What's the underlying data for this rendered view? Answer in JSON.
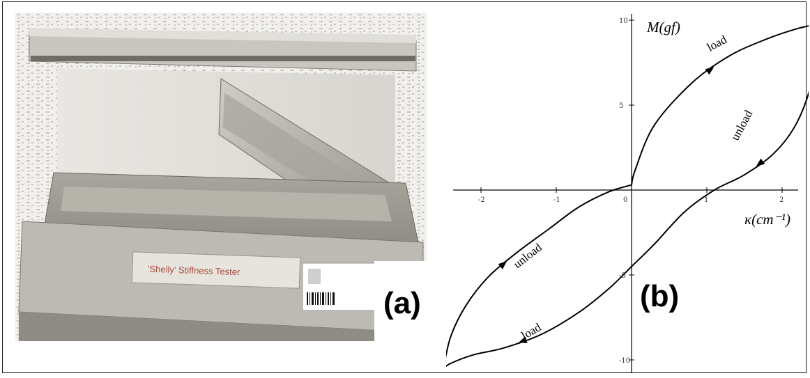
{
  "figure": {
    "panel_a": {
      "label": "(a)",
      "photo_description_label": "'Shelly' Stiffness Tester",
      "background": "#f3f2ee",
      "metal_color": "#b9b6ad"
    },
    "panel_b": {
      "label": "(b)",
      "y_axis_title": "M(gf)",
      "x_axis_title": "κ(cm⁻¹)",
      "annotations": [
        "load",
        "unload",
        "unload",
        "load"
      ]
    }
  },
  "chart_data": {
    "type": "line",
    "title": "",
    "xlabel": "κ(cm⁻¹)",
    "ylabel": "M(gf)",
    "xlim": [
      -2.5,
      2.5
    ],
    "ylim": [
      -10,
      10
    ],
    "x_ticks": [
      "-2",
      "-1",
      "0",
      "1",
      "2"
    ],
    "y_ticks": [
      "10",
      "5",
      "-5",
      "-10"
    ],
    "series": [
      {
        "x": [
          0.0,
          0.05,
          0.3,
          0.8,
          1.3,
          1.8,
          2.2,
          2.5
        ],
        "y": [
          0.3,
          1.2,
          3.8,
          6.3,
          7.9,
          8.9,
          9.5,
          9.8
        ]
      },
      {
        "x": [
          2.5,
          2.4,
          2.2,
          1.9,
          1.5,
          1.1,
          0.7,
          0.3,
          0.0
        ],
        "y": [
          9.8,
          6.5,
          4.0,
          2.2,
          0.9,
          0.0,
          -1.3,
          -3.2,
          -4.5
        ]
      },
      {
        "x": [
          0.0,
          -0.3,
          -0.7,
          -1.2,
          -1.7,
          -2.1,
          -2.4,
          -2.5
        ],
        "y": [
          -4.5,
          -5.8,
          -7.2,
          -8.5,
          -9.3,
          -9.7,
          -10.2,
          -10.5
        ]
      },
      {
        "x": [
          -2.5,
          -2.4,
          -2.2,
          -1.9,
          -1.5,
          -1.1,
          -0.7,
          -0.3,
          0.0
        ],
        "y": [
          -10.5,
          -8.6,
          -6.8,
          -5.1,
          -3.6,
          -2.3,
          -1.0,
          -0.1,
          0.3
        ]
      }
    ],
    "reference_lines_x": [
      -2.5,
      2.5
    ],
    "grid": false,
    "legend": "none"
  }
}
